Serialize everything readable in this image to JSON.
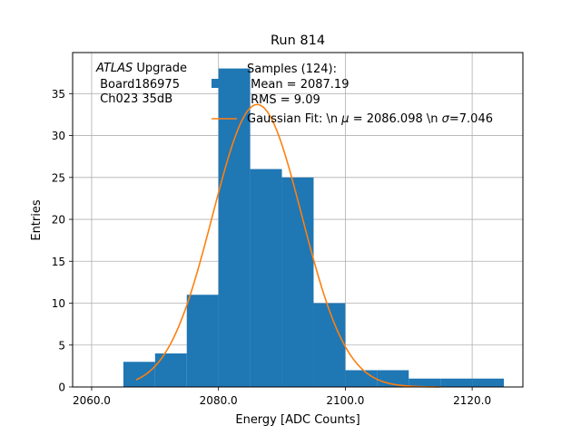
{
  "chart_data": {
    "type": "bar",
    "title": "Run 814",
    "xlabel": "Energy [ADC Counts]",
    "ylabel": "Entries",
    "xlim": [
      2057.0,
      2128.0
    ],
    "ylim": [
      0,
      39.9
    ],
    "xticks": [
      2060.0,
      2080.0,
      2100.0,
      2120.0
    ],
    "xtick_labels": [
      "2060.0",
      "2080.0",
      "2100.0",
      "2120.0"
    ],
    "yticks": [
      0,
      5,
      10,
      15,
      20,
      25,
      30,
      35
    ],
    "ytick_labels": [
      "0",
      "5",
      "10",
      "15",
      "20",
      "25",
      "30",
      "35"
    ],
    "grid": true,
    "bar_color": "#1f77b4",
    "fit_color": "#ff7f0e",
    "histogram": {
      "bin_edges": [
        2065,
        2070,
        2075,
        2080,
        2085,
        2090,
        2095,
        2100,
        2105,
        2110,
        2115,
        2120,
        2125
      ],
      "counts": [
        3,
        4,
        11,
        38,
        26,
        25,
        10,
        2,
        2,
        1,
        1,
        1
      ]
    },
    "fit": {
      "amplitude": 33.7,
      "mean": 2086.098,
      "sigma": 7.046,
      "x_range": [
        2067,
        2115
      ]
    },
    "annotation": {
      "line1_italic": "ATLAS",
      "line1_rest": " Upgrade",
      "line2": " Board186975",
      "line3": " Ch023 35dB"
    },
    "legend": {
      "placement": "top-right",
      "samples_line1": "Samples (124):",
      "samples_line2": " Mean = 2087.19",
      "samples_line3": " RMS = 9.09",
      "fit_prefix": "Gaussian Fit: \\n ",
      "fit_mu_symbol": "μ",
      "fit_mid": " = 2086.098 \\n ",
      "fit_sigma_symbol": "σ",
      "fit_suffix": "=7.046"
    }
  }
}
